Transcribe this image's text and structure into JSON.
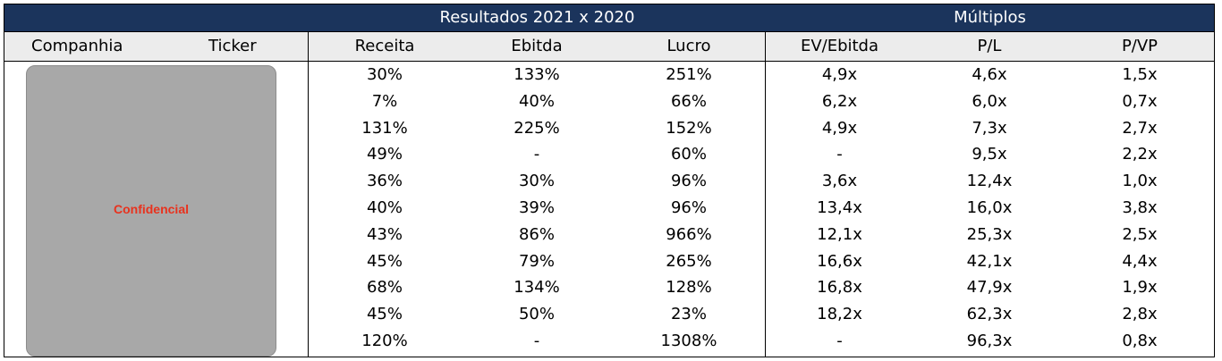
{
  "header_groups": {
    "results": "Resultados 2021 x 2020",
    "multiples": "Múltiplos"
  },
  "columns": {
    "company": "Companhia",
    "ticker": "Ticker",
    "revenue": "Receita",
    "ebitda": "Ebitda",
    "profit": "Lucro",
    "ev_ebitda": "EV/Ebitda",
    "pl": "P/L",
    "pvp": "P/VP"
  },
  "confidential_label": "Confidencial",
  "colors": {
    "header_bg": "#1b345c",
    "subheader_bg": "#ececec",
    "confidential_text": "#e8321e",
    "mask": "#a8a8a8"
  },
  "rows": [
    [
      "30%",
      "133%",
      "251%",
      "4,9x",
      "4,6x",
      "1,5x"
    ],
    [
      "7%",
      "40%",
      "66%",
      "6,2x",
      "6,0x",
      "0,7x"
    ],
    [
      "131%",
      "225%",
      "152%",
      "4,9x",
      "7,3x",
      "2,7x"
    ],
    [
      "49%",
      "-",
      "60%",
      "-",
      "9,5x",
      "2,2x"
    ],
    [
      "36%",
      "30%",
      "96%",
      "3,6x",
      "12,4x",
      "1,0x"
    ],
    [
      "40%",
      "39%",
      "96%",
      "13,4x",
      "16,0x",
      "3,8x"
    ],
    [
      "43%",
      "86%",
      "966%",
      "12,1x",
      "25,3x",
      "2,5x"
    ],
    [
      "45%",
      "79%",
      "265%",
      "16,6x",
      "42,1x",
      "4,4x"
    ],
    [
      "68%",
      "134%",
      "128%",
      "16,8x",
      "47,9x",
      "1,9x"
    ],
    [
      "45%",
      "50%",
      "23%",
      "18,2x",
      "62,3x",
      "2,8x"
    ],
    [
      "120%",
      "-",
      "1308%",
      "-",
      "96,3x",
      "0,8x"
    ]
  ]
}
